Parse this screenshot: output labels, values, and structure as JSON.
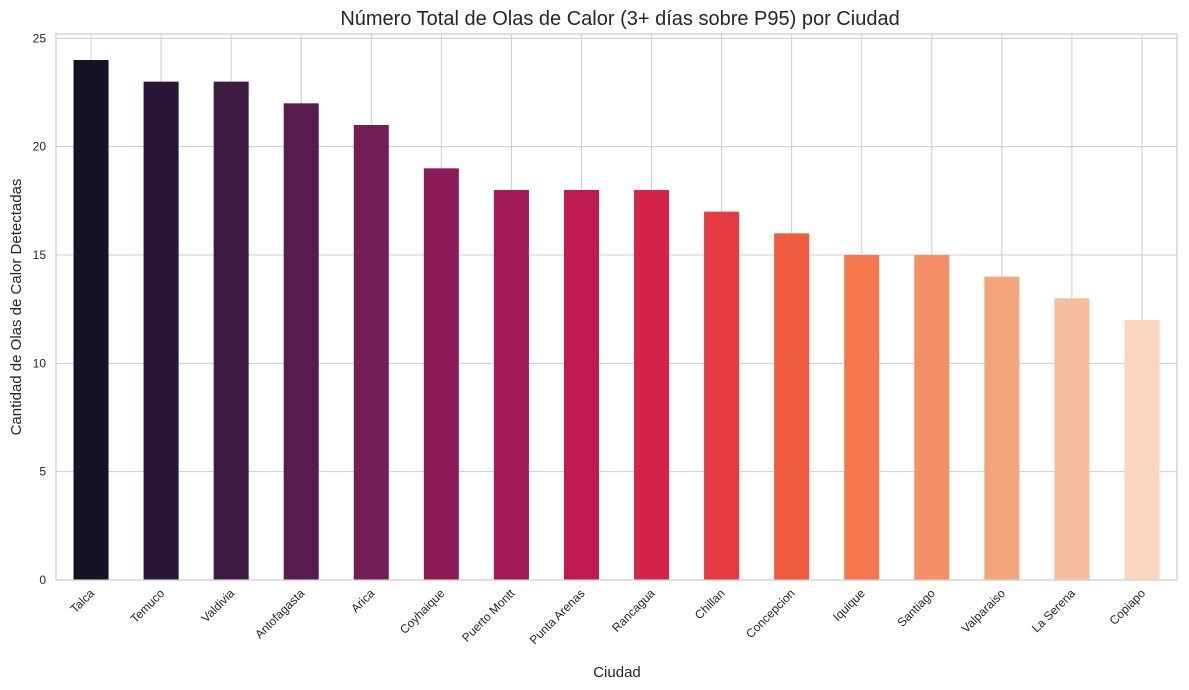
{
  "chart_data": {
    "type": "bar",
    "title": "Número Total de Olas de Calor (3+ días sobre P95) por Ciudad",
    "xlabel": "Ciudad",
    "ylabel": "Cantidad de Olas de Calor Detectadas",
    "categories": [
      "Talca",
      "Temuco",
      "Valdivia",
      "Antofagasta",
      "Arica",
      "Coyhaique",
      "Puerto Montt",
      "Punta Arenas",
      "Rancagua",
      "Chillan",
      "Concepcion",
      "Iquique",
      "Santiago",
      "Valparaiso",
      "La Serena",
      "Copiapo"
    ],
    "values": [
      24,
      23,
      23,
      22,
      21,
      19,
      18,
      18,
      18,
      17,
      16,
      15,
      15,
      14,
      13,
      12
    ],
    "ylim": [
      0,
      25.2
    ],
    "yticks": [
      0,
      5,
      10,
      15,
      20,
      25
    ],
    "grid": true,
    "legend": "none",
    "colors": [
      "#171127",
      "#2a1638",
      "#3f1a43",
      "#581c4c",
      "#731d56",
      "#8c1b57",
      "#a41957",
      "#bf1a52",
      "#d52449",
      "#e53b40",
      "#ee5b3f",
      "#f4774e",
      "#f58f67",
      "#f6a67f",
      "#f7bd9e",
      "#f8d6bf"
    ]
  }
}
